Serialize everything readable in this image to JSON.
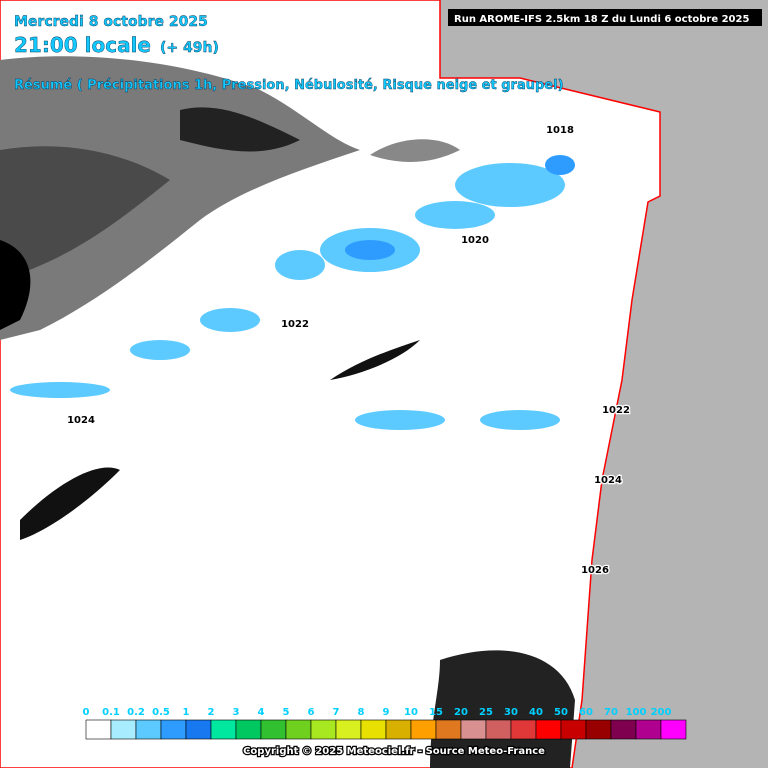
{
  "header": {
    "date": "Mercredi 8 octobre 2025",
    "time": "21:00 locale",
    "lead": "(+ 49h)",
    "summary": "Résumé ( Précipitations 1h, Pression, Nébulosité, Risque neige et graupel)",
    "run": "Run AROME-IFS 2.5km 18 Z du Lundi 6 octobre 2025"
  },
  "isobars": [
    {
      "label": "1018"
    },
    {
      "label": "1020"
    },
    {
      "label": "1022"
    },
    {
      "label": "1022"
    },
    {
      "label": "1024"
    },
    {
      "label": "1024"
    },
    {
      "label": "1026"
    }
  ],
  "legend": [
    {
      "label": "0",
      "color": "#ffffff"
    },
    {
      "label": "0.1",
      "color": "#a8ecff"
    },
    {
      "label": "0.2",
      "color": "#5ccaff"
    },
    {
      "label": "0.5",
      "color": "#2e9cff"
    },
    {
      "label": "1",
      "color": "#1878f0"
    },
    {
      "label": "2",
      "color": "#00e8a0"
    },
    {
      "label": "3",
      "color": "#00c860"
    },
    {
      "label": "4",
      "color": "#30c030"
    },
    {
      "label": "5",
      "color": "#70d020"
    },
    {
      "label": "6",
      "color": "#a8e820"
    },
    {
      "label": "7",
      "color": "#d8f020"
    },
    {
      "label": "8",
      "color": "#e8e000"
    },
    {
      "label": "9",
      "color": "#d8b000"
    },
    {
      "label": "10",
      "color": "#ffa000"
    },
    {
      "label": "15",
      "color": "#e07820"
    },
    {
      "label": "20",
      "color": "#d89090"
    },
    {
      "label": "25",
      "color": "#d06060"
    },
    {
      "label": "30",
      "color": "#e03838"
    },
    {
      "label": "40",
      "color": "#ff0000"
    },
    {
      "label": "50",
      "color": "#c80000"
    },
    {
      "label": "60",
      "color": "#980000"
    },
    {
      "label": "70",
      "color": "#800050"
    },
    {
      "label": "100",
      "color": "#b00090"
    },
    {
      "label": "200",
      "color": "#ff00ff"
    }
  ],
  "footer": "Copyright © 2025 Meteociel.fr - Source Meteo-France"
}
